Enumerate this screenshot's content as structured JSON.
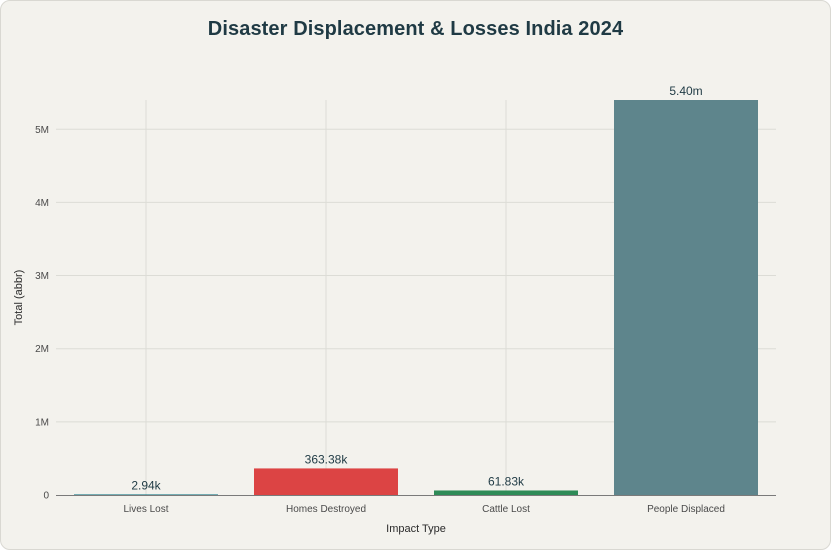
{
  "chart_data": {
    "type": "bar",
    "title": "Disaster Displacement & Losses India 2024",
    "xlabel": "Impact Type",
    "ylabel": "Total (abbr)",
    "categories": [
      "Lives Lost",
      "Homes Destroyed",
      "Cattle Lost",
      "People Displaced"
    ],
    "values": [
      2940,
      363380,
      61830,
      5400000
    ],
    "data_labels": [
      "2.94k",
      "363.38k",
      "61.83k",
      "5.40m"
    ],
    "colors": [
      "#1f7f8a",
      "#dc4444",
      "#2e8b57",
      "#5e858c"
    ],
    "ylim": [
      0,
      5400000
    ],
    "y_ticks": [
      0,
      1000000,
      2000000,
      3000000,
      4000000,
      5000000
    ],
    "y_tick_labels": [
      "0",
      "1M",
      "2M",
      "3M",
      "4M",
      "5M"
    ],
    "grid": true,
    "legend": "none"
  }
}
